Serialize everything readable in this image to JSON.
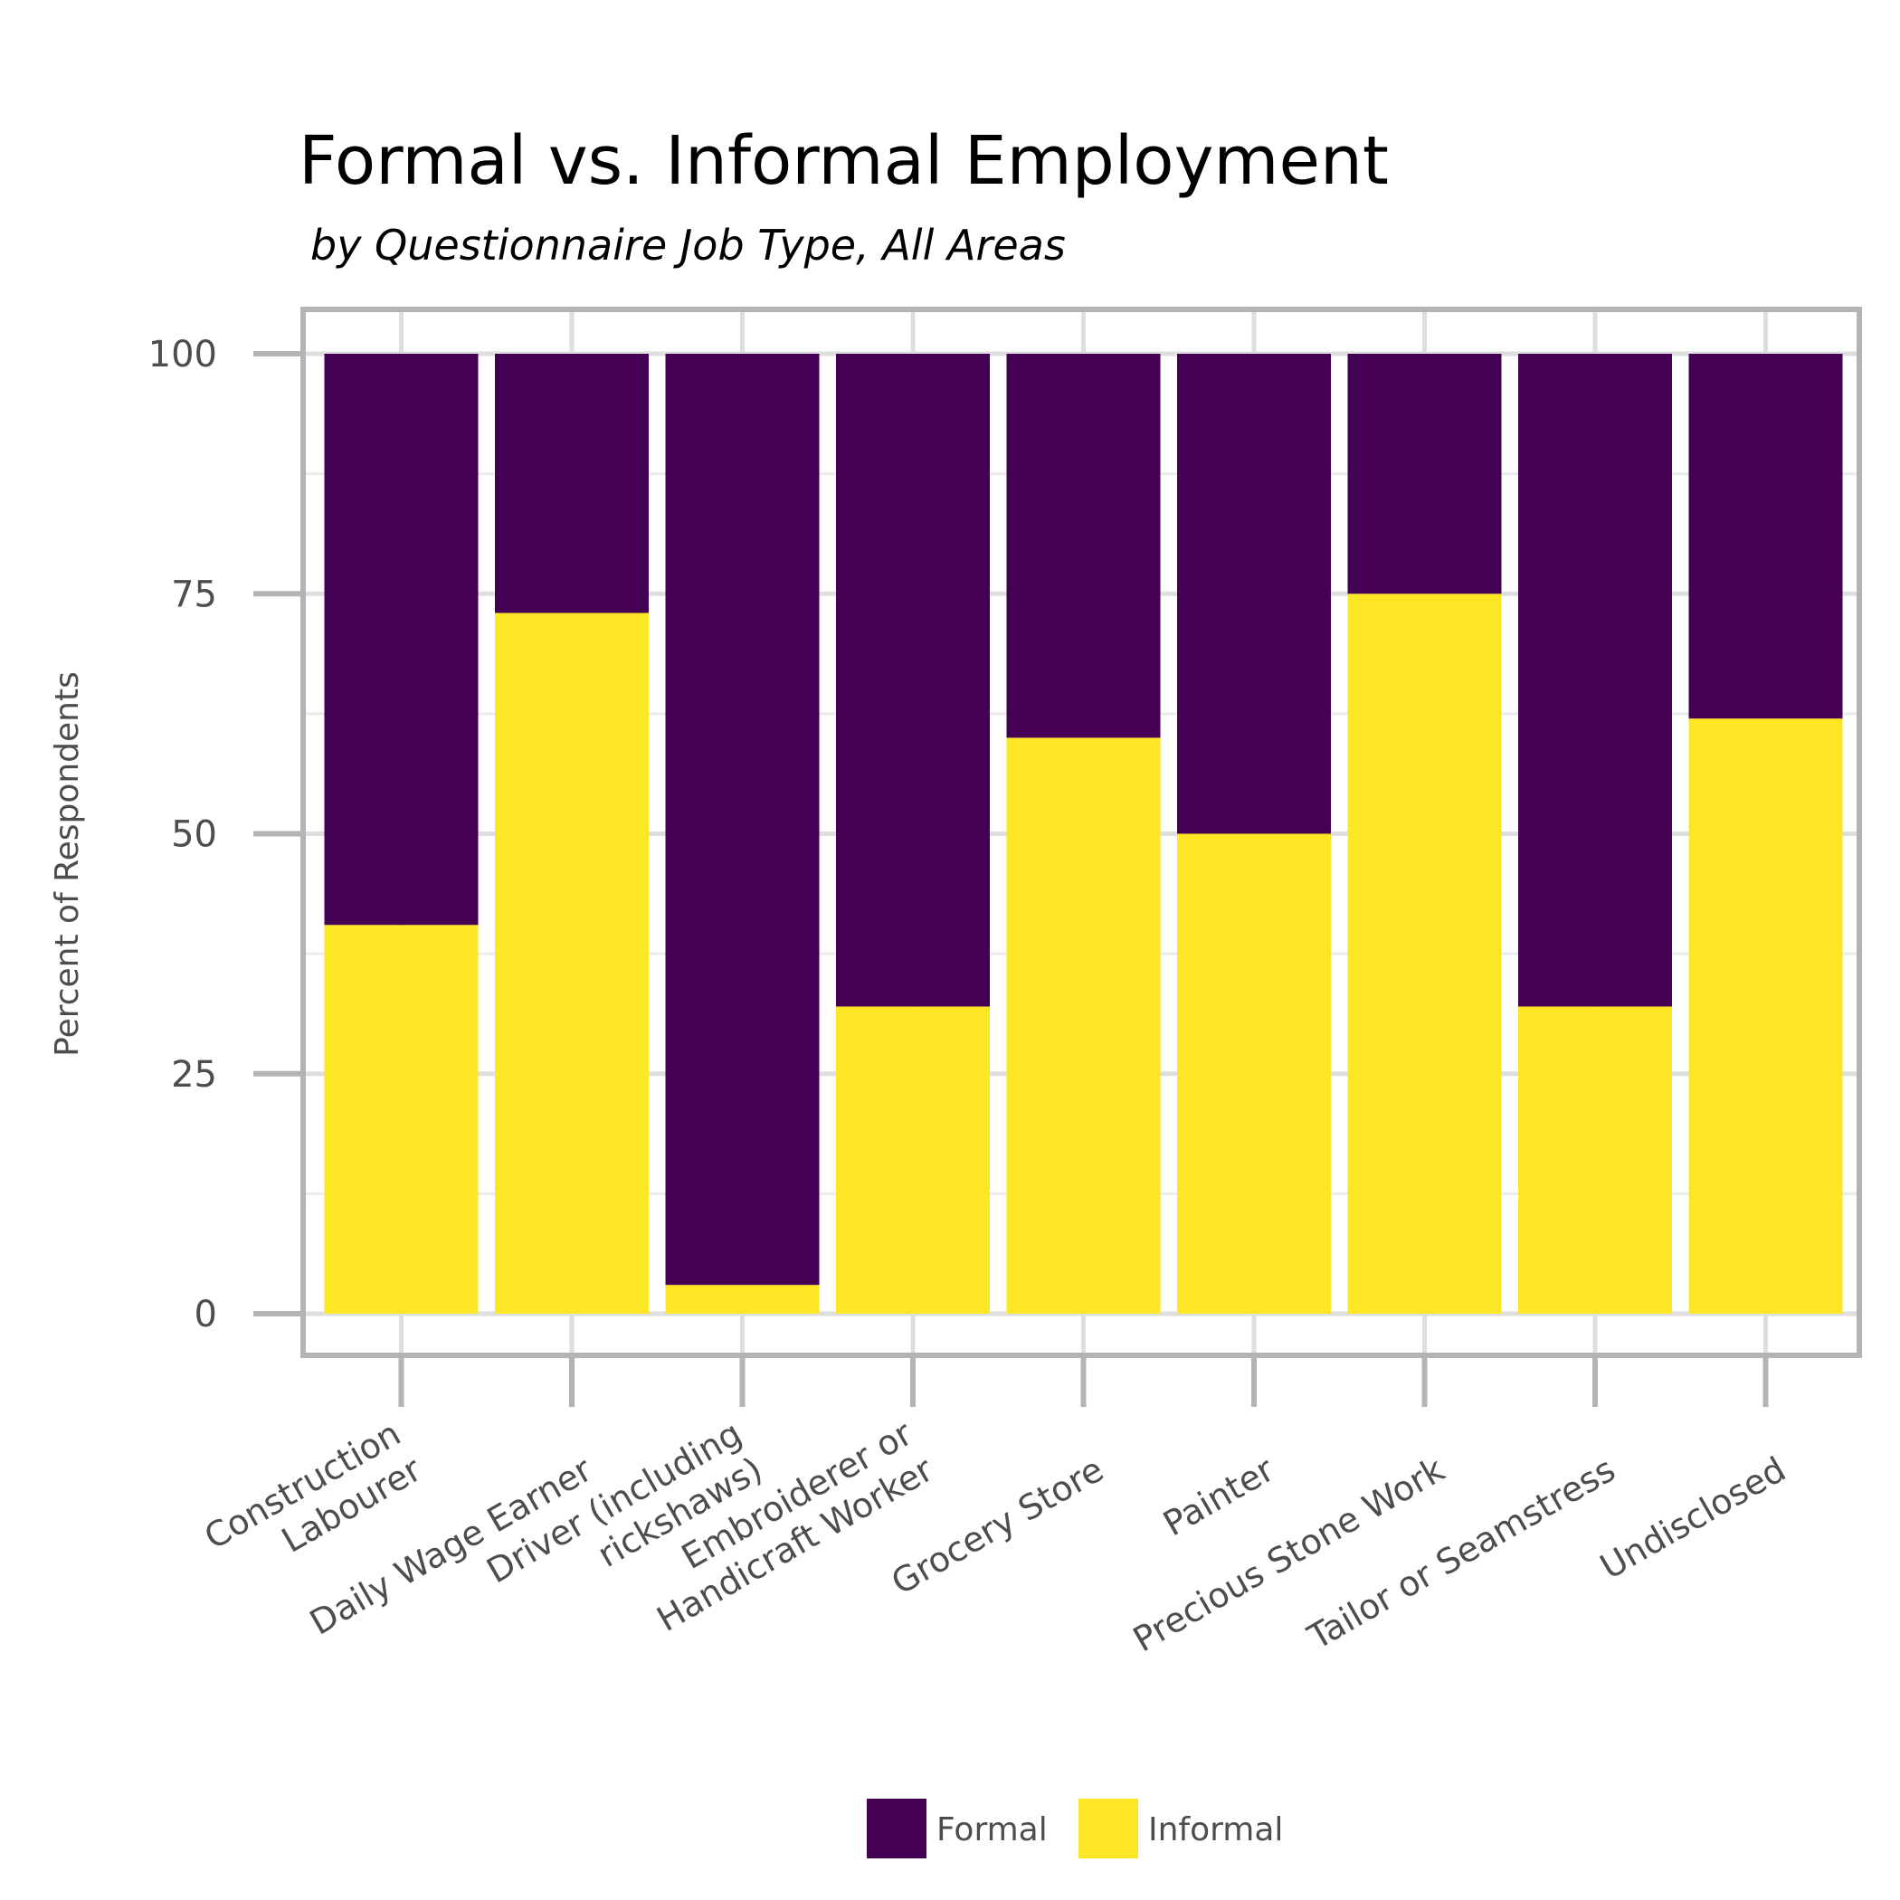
{
  "chart_data": {
    "type": "bar",
    "stacked": true,
    "title": "Formal vs. Informal Employment",
    "subtitle": "by Questionnaire Job Type, All Areas",
    "xlabel": "",
    "ylabel": "Percent of Respondents",
    "ylim": [
      0,
      100
    ],
    "yticks": [
      "0",
      "25",
      "50",
      "75",
      "100"
    ],
    "grid": true,
    "legend_position": "bottom",
    "categories": [
      [
        "Construction",
        "Labourer"
      ],
      [
        "Daily Wage Earner"
      ],
      [
        "Driver (including",
        "rickshaws)"
      ],
      [
        "Embroiderer or",
        "Handicraft Worker"
      ],
      [
        "Grocery Store"
      ],
      [
        "Painter"
      ],
      [
        "Precious Stone Work"
      ],
      [
        "Tailor or Seamstress"
      ],
      [
        "Undisclosed"
      ]
    ],
    "series": [
      {
        "name": "Informal",
        "color": "#FDE725",
        "values": [
          40.5,
          73,
          3,
          32,
          60,
          50,
          75,
          32,
          62
        ]
      },
      {
        "name": "Formal",
        "color": "#440154",
        "values": [
          59.5,
          27,
          97,
          68,
          40,
          50,
          25,
          68,
          38
        ]
      }
    ],
    "legend": [
      {
        "label": "Formal",
        "color": "#440154"
      },
      {
        "label": "Informal",
        "color": "#FDE725"
      }
    ]
  }
}
